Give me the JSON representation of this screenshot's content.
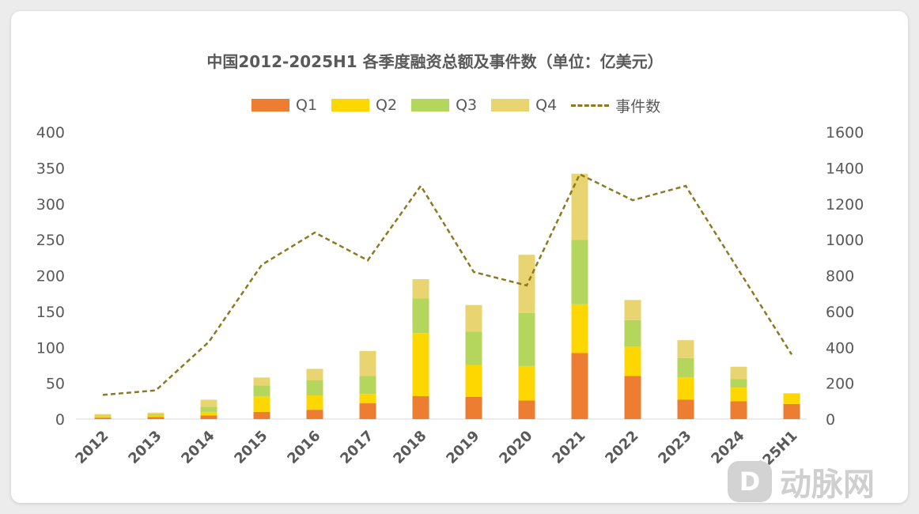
{
  "chart_data": {
    "type": "bar",
    "stacked": true,
    "title": "中国2012-2025H1 各季度融资总额及事件数（单位：亿美元）",
    "categories": [
      "2012",
      "2013",
      "2014",
      "2015",
      "2016",
      "2017",
      "2018",
      "2019",
      "2020",
      "2021",
      "2022",
      "2023",
      "2024",
      "2025H1"
    ],
    "series": [
      {
        "name": "Q1",
        "color": "#ed7d31",
        "values": [
          2,
          3,
          5,
          10,
          13,
          22,
          32,
          31,
          26,
          92,
          60,
          27,
          25,
          21
        ]
      },
      {
        "name": "Q2",
        "color": "#ffd700",
        "values": [
          2,
          2,
          5,
          22,
          20,
          13,
          88,
          44,
          48,
          68,
          41,
          31,
          19,
          15
        ]
      },
      {
        "name": "Q3",
        "color": "#b5d65c",
        "values": [
          1,
          2,
          7,
          15,
          21,
          25,
          48,
          47,
          74,
          90,
          37,
          27,
          12,
          0
        ]
      },
      {
        "name": "Q4",
        "color": "#e8d572",
        "values": [
          2,
          2,
          10,
          11,
          16,
          35,
          27,
          37,
          81,
          92,
          28,
          25,
          17,
          0
        ]
      }
    ],
    "line": {
      "name": "事件数",
      "color": "#8b7a22",
      "axis": "right",
      "values": [
        135,
        160,
        430,
        860,
        1040,
        885,
        1300,
        820,
        745,
        1365,
        1220,
        1300,
        830,
        360
      ]
    },
    "y_left": {
      "min": 0,
      "max": 400,
      "ticks": [
        0,
        50,
        100,
        150,
        200,
        250,
        300,
        350,
        400
      ]
    },
    "y_right": {
      "min": 0,
      "max": 1600,
      "ticks": [
        0,
        200,
        400,
        600,
        800,
        1000,
        1200,
        1400,
        1600
      ]
    },
    "legend_position": "top",
    "grid": false
  },
  "watermark": {
    "icon": "动脉网-logo-icon",
    "text": "动脉网"
  }
}
